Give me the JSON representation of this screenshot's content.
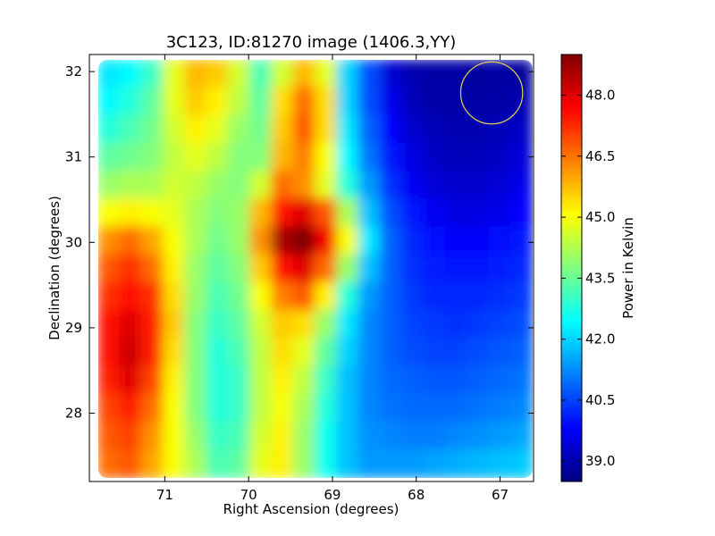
{
  "chart_data": {
    "type": "heatmap",
    "title": "3C123, ID:81270 image (1406.3,YY)",
    "xlabel": "Right Ascension (degrees)",
    "ylabel": "Declination (degrees)",
    "xlim": [
      71.9,
      66.6
    ],
    "ylim": [
      27.2,
      32.2
    ],
    "x_ticks": [
      71,
      70,
      69,
      68,
      67
    ],
    "y_ticks": [
      28,
      29,
      30,
      31,
      32
    ],
    "grid": false,
    "colorbar": {
      "label": "Power in Kelvin",
      "range": [
        38.5,
        49.0
      ],
      "ticks": [
        "39.0",
        "40.5",
        "42.0",
        "43.5",
        "45.0",
        "46.5",
        "48.0"
      ],
      "colormap": "jet"
    },
    "values_z": [
      [
        42.2,
        42.4,
        43.0,
        44.8,
        45.8,
        45.6,
        44.6,
        43.2,
        44.6,
        45.8,
        44.8,
        42.0,
        40.6,
        39.4,
        39.0,
        38.9,
        38.9,
        38.8,
        38.9,
        38.8
      ],
      [
        42.4,
        42.8,
        43.4,
        44.8,
        45.6,
        45.2,
        44.4,
        43.4,
        45.4,
        46.6,
        45.4,
        42.0,
        40.6,
        39.6,
        39.1,
        38.9,
        38.9,
        38.9,
        38.9,
        39.0
      ],
      [
        42.8,
        43.2,
        43.6,
        44.6,
        45.2,
        44.8,
        44.0,
        43.6,
        45.6,
        46.8,
        45.4,
        42.2,
        40.8,
        39.8,
        39.3,
        39.1,
        39.0,
        39.0,
        39.1,
        39.2
      ],
      [
        43.4,
        43.6,
        43.8,
        44.4,
        44.8,
        44.4,
        43.8,
        43.8,
        45.8,
        46.4,
        45.0,
        42.4,
        41.0,
        40.0,
        39.5,
        39.2,
        39.1,
        39.1,
        39.2,
        39.4
      ],
      [
        44.0,
        44.2,
        44.2,
        44.6,
        44.4,
        44.0,
        43.8,
        44.6,
        46.6,
        46.2,
        44.8,
        42.8,
        41.4,
        40.3,
        39.7,
        39.4,
        39.3,
        39.3,
        39.4,
        39.6
      ],
      [
        45.0,
        45.2,
        45.0,
        44.8,
        44.2,
        43.8,
        44.0,
        45.8,
        47.6,
        48.0,
        46.8,
        44.2,
        41.8,
        40.6,
        40.0,
        39.7,
        39.5,
        39.5,
        39.6,
        39.8
      ],
      [
        46.2,
        46.6,
        46.0,
        45.0,
        44.2,
        43.6,
        44.0,
        46.2,
        48.6,
        49.0,
        47.8,
        45.0,
        42.2,
        40.8,
        40.2,
        39.9,
        39.8,
        39.8,
        39.9,
        40.0
      ],
      [
        46.8,
        47.2,
        46.6,
        45.2,
        44.0,
        43.4,
        43.8,
        45.6,
        47.6,
        48.0,
        46.6,
        44.0,
        41.8,
        40.8,
        40.3,
        40.1,
        40.0,
        40.0,
        40.1,
        40.2
      ],
      [
        47.2,
        47.6,
        47.2,
        45.4,
        44.0,
        43.2,
        43.6,
        45.0,
        46.4,
        46.8,
        45.2,
        42.8,
        41.4,
        40.8,
        40.4,
        40.2,
        40.2,
        40.2,
        40.3,
        40.4
      ],
      [
        47.6,
        48.0,
        47.4,
        45.6,
        43.8,
        43.0,
        43.4,
        44.6,
        45.6,
        45.4,
        44.0,
        42.2,
        41.2,
        40.8,
        40.5,
        40.4,
        40.3,
        40.4,
        40.5,
        40.6
      ],
      [
        47.6,
        48.2,
        47.4,
        45.4,
        43.8,
        42.8,
        43.2,
        44.4,
        45.4,
        44.8,
        43.4,
        42.0,
        41.2,
        40.8,
        40.6,
        40.5,
        40.5,
        40.6,
        40.7,
        40.8
      ],
      [
        47.4,
        48.0,
        47.0,
        45.2,
        43.8,
        42.8,
        43.0,
        44.4,
        45.2,
        44.4,
        43.0,
        41.8,
        41.2,
        40.9,
        40.8,
        40.7,
        40.7,
        40.8,
        40.9,
        41.0
      ],
      [
        47.0,
        47.4,
        46.6,
        45.0,
        43.8,
        42.8,
        43.0,
        44.4,
        45.0,
        44.2,
        42.8,
        41.8,
        41.2,
        41.0,
        40.9,
        40.9,
        40.9,
        41.0,
        41.1,
        41.2
      ],
      [
        46.8,
        47.0,
        46.2,
        45.0,
        44.0,
        43.0,
        43.2,
        44.6,
        45.2,
        44.0,
        42.6,
        41.8,
        41.3,
        41.2,
        41.1,
        41.1,
        41.2,
        41.3,
        41.4,
        41.5
      ],
      [
        46.6,
        46.8,
        46.0,
        45.0,
        44.2,
        43.2,
        43.4,
        44.8,
        45.2,
        44.0,
        42.6,
        41.8,
        41.4,
        41.4,
        41.4,
        41.5,
        41.6,
        41.7,
        41.8,
        41.9
      ]
    ],
    "annotations": [
      {
        "type": "circle",
        "center": [
          67.1,
          31.75
        ],
        "radius_deg": 0.37,
        "color": "#e6d44a"
      }
    ]
  }
}
